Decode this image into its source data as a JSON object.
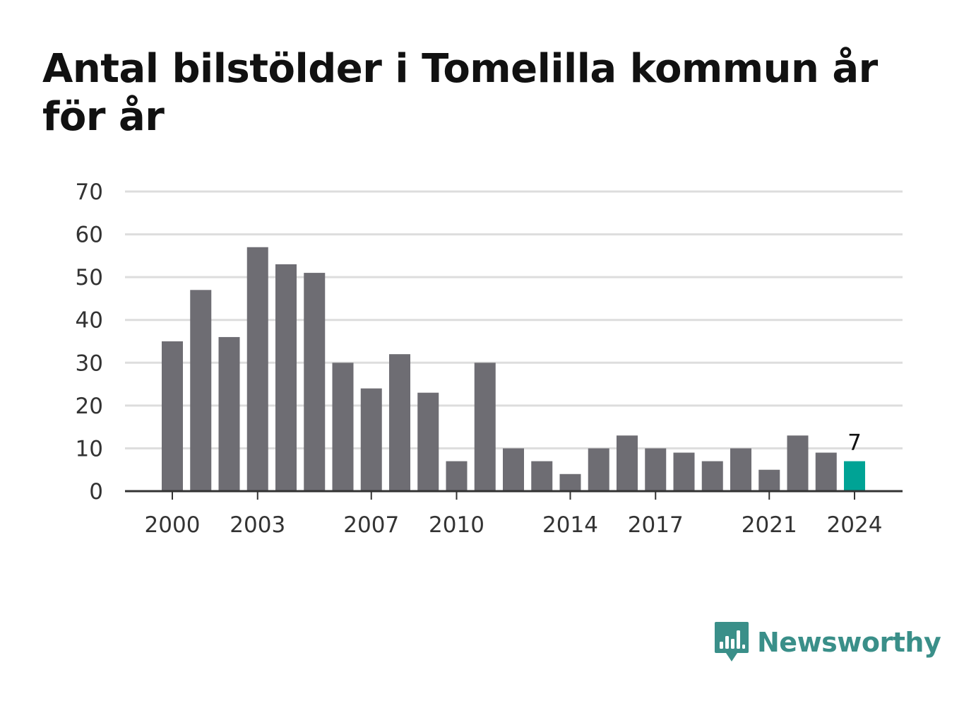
{
  "colors": {
    "bar": "#6e6d73",
    "highlight": "#00a395",
    "grid": "#dddddd",
    "axis": "#333333",
    "brand": "#3a8f89"
  },
  "brand": {
    "name": "Newsworthy",
    "logo_icon": "newsworthy-bar-chart-speech-bubble-icon"
  },
  "chart_data": {
    "type": "bar",
    "title": "Antal bilstölder i Tomelilla kommun år för år",
    "xlabel": "",
    "ylabel": "",
    "ylim": [
      0,
      70
    ],
    "yticks": [
      "0",
      "10",
      "20",
      "30",
      "40",
      "50",
      "60",
      "70"
    ],
    "grid": true,
    "categories": [
      2000,
      2001,
      2002,
      2003,
      2004,
      2005,
      2006,
      2007,
      2008,
      2009,
      2010,
      2011,
      2012,
      2013,
      2014,
      2015,
      2016,
      2017,
      2018,
      2019,
      2020,
      2021,
      2022,
      2023,
      2024
    ],
    "values": [
      35,
      47,
      36,
      57,
      53,
      51,
      30,
      24,
      32,
      23,
      7,
      30,
      10,
      7,
      4,
      10,
      13,
      10,
      9,
      7,
      10,
      5,
      13,
      9,
      7
    ],
    "xtick_labels": [
      "2000",
      "2003",
      "2007",
      "2010",
      "2014",
      "2017",
      "2021",
      "2024"
    ],
    "highlight": {
      "category": 2024,
      "label": "7"
    }
  }
}
